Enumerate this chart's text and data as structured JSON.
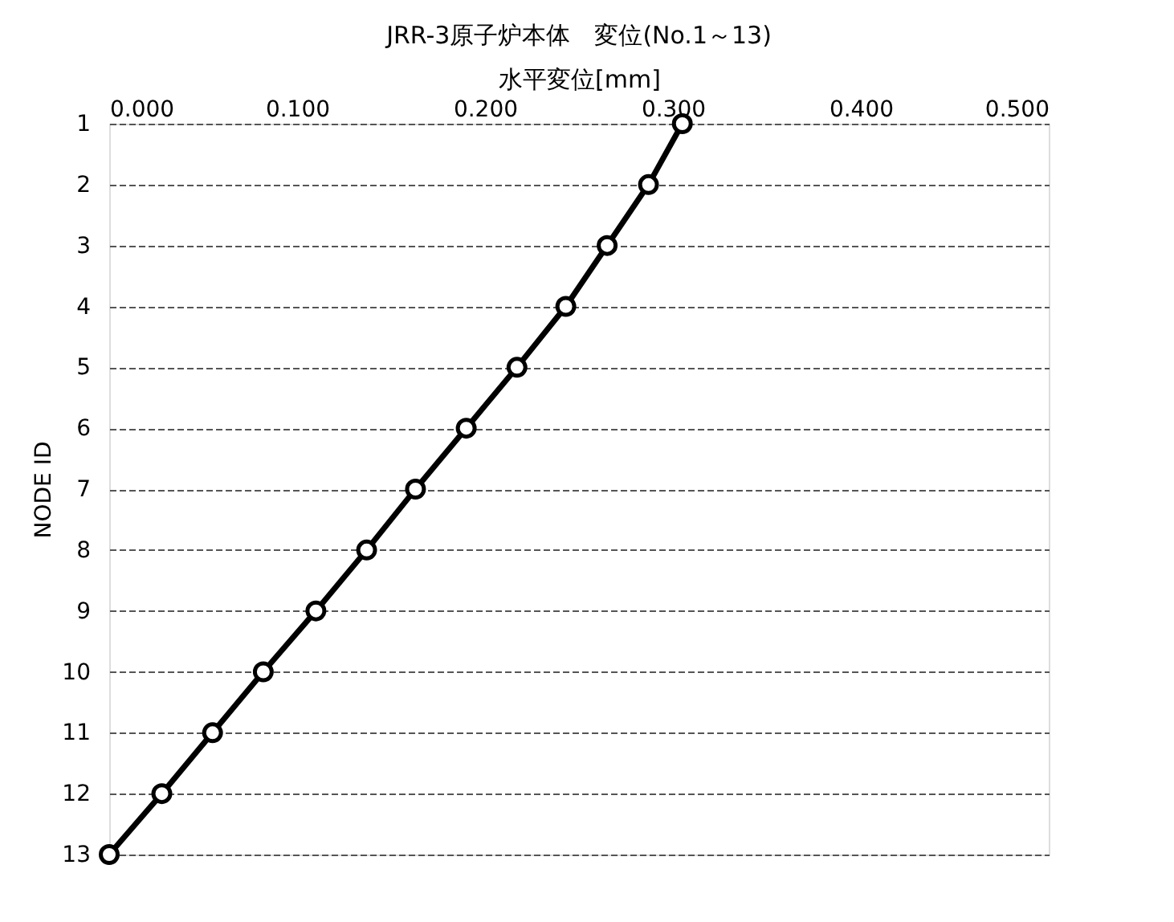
{
  "chart_data": {
    "type": "line",
    "orientation": "horizontal",
    "title": "JRR-3原子炉本体　変位(No.1～13)",
    "xlabel": "水平変位[mm]",
    "ylabel": "NODE ID",
    "categories": [
      "1",
      "2",
      "3",
      "4",
      "5",
      "6",
      "7",
      "8",
      "9",
      "10",
      "11",
      "12",
      "13"
    ],
    "series": [
      {
        "color": "#000000",
        "values": [
          0.305,
          0.287,
          0.265,
          0.243,
          0.217,
          0.19,
          0.163,
          0.137,
          0.11,
          0.082,
          0.055,
          0.028,
          0.0
        ]
      }
    ],
    "xlim": [
      0,
      0.5
    ],
    "xticks": [
      {
        "value": 0,
        "label": "0.000"
      },
      {
        "value": 0.1,
        "label": "0.100"
      },
      {
        "value": 0.2,
        "label": "0.200"
      },
      {
        "value": 0.3,
        "label": "0.300"
      },
      {
        "value": 0.4,
        "label": "0.400"
      },
      {
        "value": 0.5,
        "label": "0.500"
      }
    ],
    "grid": "y",
    "marker": "circle",
    "line_style": "solid"
  }
}
